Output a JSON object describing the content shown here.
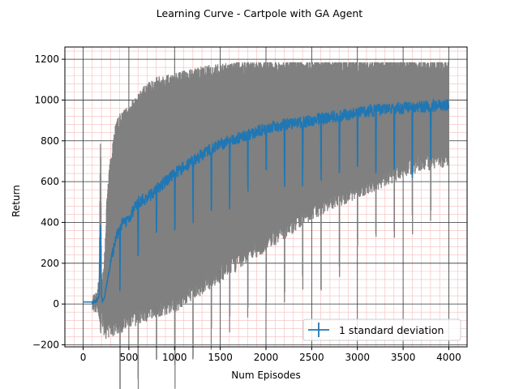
{
  "chart_data": {
    "type": "line",
    "title": "Learning Curve - Cartpole with GA Agent",
    "xlabel": "Num Episodes",
    "ylabel": "Return",
    "xlim": [
      -200,
      4200
    ],
    "ylim": [
      -210,
      1260
    ],
    "xticks": [
      0,
      500,
      1000,
      1500,
      2000,
      2500,
      3000,
      3500,
      4000
    ],
    "yticks": [
      -200,
      0,
      200,
      400,
      600,
      800,
      1000,
      1200
    ],
    "grid": {
      "major": true,
      "minor": true,
      "major_color": "#333333",
      "minor_color": "#f4bcbc"
    },
    "legend": {
      "placement": "bottom-right",
      "entries": [
        "1 standard deviation"
      ]
    },
    "series": [
      {
        "name": "1 standard deviation",
        "color": "#1f77b4",
        "band_color": "#808080",
        "x": [
          0,
          100,
          150,
          175,
          190,
          200,
          210,
          230,
          260,
          300,
          350,
          400,
          500,
          600,
          700,
          800,
          1000,
          1200,
          1400,
          1600,
          1800,
          2000,
          2200,
          2400,
          2600,
          2800,
          3000,
          3200,
          3400,
          3600,
          3800,
          4000
        ],
        "mean": [
          10,
          10,
          15,
          40,
          420,
          30,
          20,
          30,
          100,
          200,
          300,
          380,
          420,
          500,
          520,
          560,
          640,
          700,
          760,
          800,
          830,
          860,
          880,
          890,
          910,
          920,
          940,
          950,
          960,
          965,
          970,
          975
        ],
        "upper": [
          10,
          10,
          30,
          100,
          850,
          120,
          100,
          180,
          500,
          700,
          850,
          900,
          950,
          1000,
          1050,
          1080,
          1100,
          1120,
          1140,
          1150,
          1160,
          1160,
          1170,
          1170,
          1170,
          1170,
          1170,
          1170,
          1170,
          1170,
          1170,
          1170
        ],
        "lower": [
          10,
          10,
          0,
          -30,
          -140,
          -60,
          -60,
          -120,
          -130,
          -120,
          -110,
          -100,
          -80,
          -60,
          -40,
          -20,
          0,
          60,
          120,
          180,
          240,
          300,
          360,
          420,
          480,
          520,
          560,
          600,
          640,
          680,
          700,
          720
        ]
      }
    ]
  }
}
